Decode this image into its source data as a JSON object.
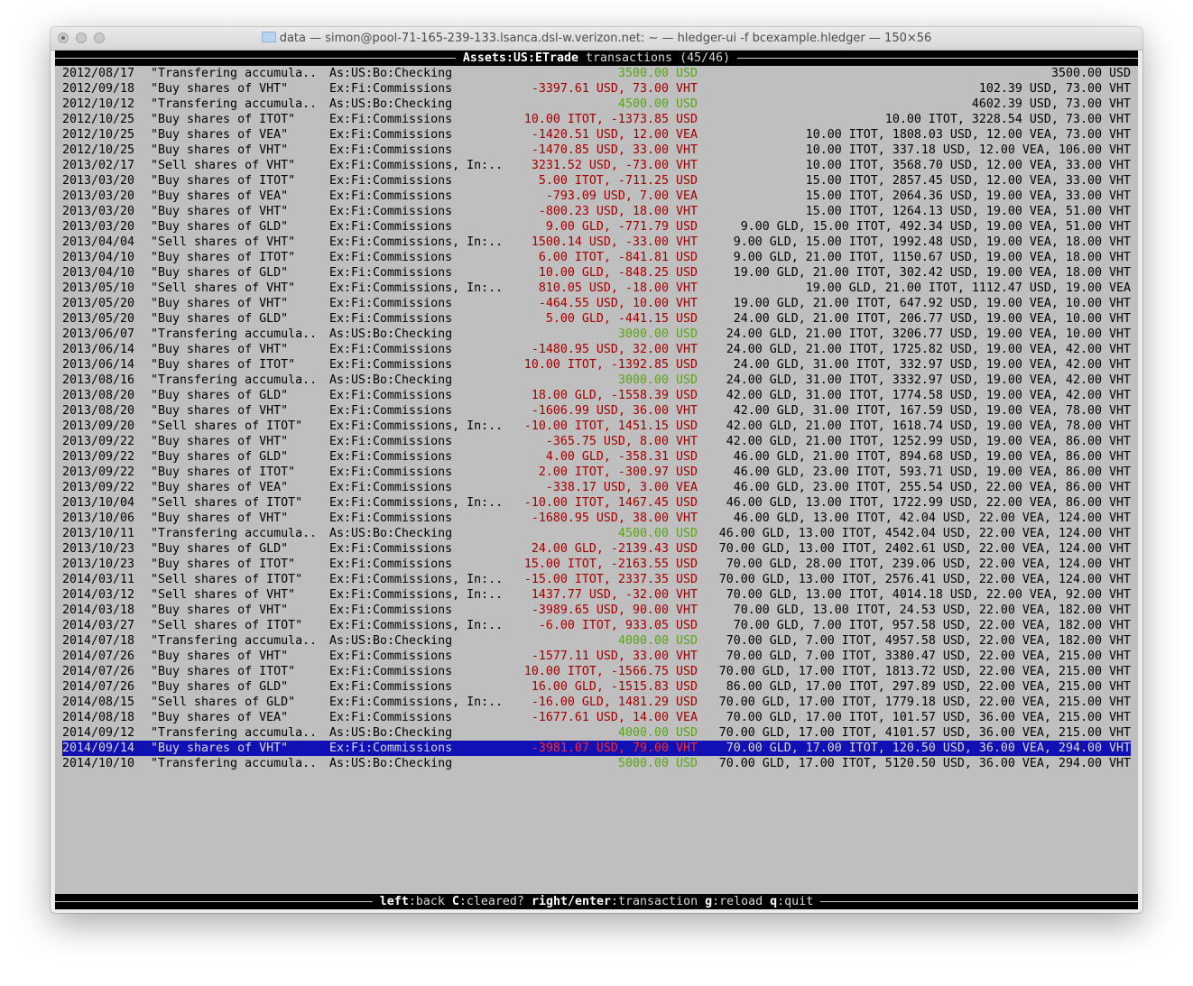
{
  "window": {
    "title": "data — simon@pool-71-165-239-133.lsanca.dsl-w.verizon.net: ~ — hledger-ui -f bcexample.hledger — 150×56"
  },
  "header": {
    "account": "Assets:US:ETrade",
    "suffix": "transactions (45/46)"
  },
  "footer": {
    "keys": [
      {
        "key": "left",
        "action": ":back "
      },
      {
        "key": "C",
        "action": ":cleared? "
      },
      {
        "key": "right/enter",
        "action": ":transaction "
      },
      {
        "key": "g",
        "action": ":reload "
      },
      {
        "key": "q",
        "action": ":quit"
      }
    ]
  },
  "colors": {
    "positive": "#5aa418",
    "negative": "#a00000",
    "selection": "#1010b4",
    "background": "#bfbfbf"
  },
  "selected_index": 44,
  "rows": [
    {
      "date": "2012/08/17",
      "desc": "\"Transfering accumula..",
      "account": "As:US:Bo:Checking",
      "change": "3500.00 USD",
      "sign": "green",
      "balance": "3500.00 USD"
    },
    {
      "date": "2012/09/18",
      "desc": "\"Buy shares of VHT\"",
      "account": "Ex:Fi:Commissions",
      "change": "-3397.61 USD, 73.00 VHT",
      "sign": "red",
      "balance": "102.39 USD, 73.00 VHT"
    },
    {
      "date": "2012/10/12",
      "desc": "\"Transfering accumula..",
      "account": "As:US:Bo:Checking",
      "change": "4500.00 USD",
      "sign": "green",
      "balance": "4602.39 USD, 73.00 VHT"
    },
    {
      "date": "2012/10/25",
      "desc": "\"Buy shares of ITOT\"",
      "account": "Ex:Fi:Commissions",
      "change": "10.00 ITOT, -1373.85 USD",
      "sign": "red",
      "balance": "10.00 ITOT, 3228.54 USD, 73.00 VHT"
    },
    {
      "date": "2012/10/25",
      "desc": "\"Buy shares of VEA\"",
      "account": "Ex:Fi:Commissions",
      "change": "-1420.51 USD, 12.00 VEA",
      "sign": "red",
      "balance": "10.00 ITOT, 1808.03 USD, 12.00 VEA, 73.00 VHT"
    },
    {
      "date": "2012/10/25",
      "desc": "\"Buy shares of VHT\"",
      "account": "Ex:Fi:Commissions",
      "change": "-1470.85 USD, 33.00 VHT",
      "sign": "red",
      "balance": "10.00 ITOT, 337.18 USD, 12.00 VEA, 106.00 VHT"
    },
    {
      "date": "2013/02/17",
      "desc": "\"Sell shares of VHT\"",
      "account": "Ex:Fi:Commissions, In:..",
      "change": "3231.52 USD, -73.00 VHT",
      "sign": "red",
      "balance": "10.00 ITOT, 3568.70 USD, 12.00 VEA, 33.00 VHT"
    },
    {
      "date": "2013/03/20",
      "desc": "\"Buy shares of ITOT\"",
      "account": "Ex:Fi:Commissions",
      "change": "5.00 ITOT, -711.25 USD",
      "sign": "red",
      "balance": "15.00 ITOT, 2857.45 USD, 12.00 VEA, 33.00 VHT"
    },
    {
      "date": "2013/03/20",
      "desc": "\"Buy shares of VEA\"",
      "account": "Ex:Fi:Commissions",
      "change": "-793.09 USD, 7.00 VEA",
      "sign": "red",
      "balance": "15.00 ITOT, 2064.36 USD, 19.00 VEA, 33.00 VHT"
    },
    {
      "date": "2013/03/20",
      "desc": "\"Buy shares of VHT\"",
      "account": "Ex:Fi:Commissions",
      "change": "-800.23 USD, 18.00 VHT",
      "sign": "red",
      "balance": "15.00 ITOT, 1264.13 USD, 19.00 VEA, 51.00 VHT"
    },
    {
      "date": "2013/03/20",
      "desc": "\"Buy shares of GLD\"",
      "account": "Ex:Fi:Commissions",
      "change": "9.00 GLD, -771.79 USD",
      "sign": "red",
      "balance": "9.00 GLD, 15.00 ITOT, 492.34 USD, 19.00 VEA, 51.00 VHT"
    },
    {
      "date": "2013/04/04",
      "desc": "\"Sell shares of VHT\"",
      "account": "Ex:Fi:Commissions, In:..",
      "change": "1500.14 USD, -33.00 VHT",
      "sign": "red",
      "balance": "9.00 GLD, 15.00 ITOT, 1992.48 USD, 19.00 VEA, 18.00 VHT"
    },
    {
      "date": "2013/04/10",
      "desc": "\"Buy shares of ITOT\"",
      "account": "Ex:Fi:Commissions",
      "change": "6.00 ITOT, -841.81 USD",
      "sign": "red",
      "balance": "9.00 GLD, 21.00 ITOT, 1150.67 USD, 19.00 VEA, 18.00 VHT"
    },
    {
      "date": "2013/04/10",
      "desc": "\"Buy shares of GLD\"",
      "account": "Ex:Fi:Commissions",
      "change": "10.00 GLD, -848.25 USD",
      "sign": "red",
      "balance": "19.00 GLD, 21.00 ITOT, 302.42 USD, 19.00 VEA, 18.00 VHT"
    },
    {
      "date": "2013/05/10",
      "desc": "\"Sell shares of VHT\"",
      "account": "Ex:Fi:Commissions, In:..",
      "change": "810.05 USD, -18.00 VHT",
      "sign": "red",
      "balance": "19.00 GLD, 21.00 ITOT, 1112.47 USD, 19.00 VEA"
    },
    {
      "date": "2013/05/20",
      "desc": "\"Buy shares of VHT\"",
      "account": "Ex:Fi:Commissions",
      "change": "-464.55 USD, 10.00 VHT",
      "sign": "red",
      "balance": "19.00 GLD, 21.00 ITOT, 647.92 USD, 19.00 VEA, 10.00 VHT"
    },
    {
      "date": "2013/05/20",
      "desc": "\"Buy shares of GLD\"",
      "account": "Ex:Fi:Commissions",
      "change": "5.00 GLD, -441.15 USD",
      "sign": "red",
      "balance": "24.00 GLD, 21.00 ITOT, 206.77 USD, 19.00 VEA, 10.00 VHT"
    },
    {
      "date": "2013/06/07",
      "desc": "\"Transfering accumula..",
      "account": "As:US:Bo:Checking",
      "change": "3000.00 USD",
      "sign": "green",
      "balance": "24.00 GLD, 21.00 ITOT, 3206.77 USD, 19.00 VEA, 10.00 VHT"
    },
    {
      "date": "2013/06/14",
      "desc": "\"Buy shares of VHT\"",
      "account": "Ex:Fi:Commissions",
      "change": "-1480.95 USD, 32.00 VHT",
      "sign": "red",
      "balance": "24.00 GLD, 21.00 ITOT, 1725.82 USD, 19.00 VEA, 42.00 VHT"
    },
    {
      "date": "2013/06/14",
      "desc": "\"Buy shares of ITOT\"",
      "account": "Ex:Fi:Commissions",
      "change": "10.00 ITOT, -1392.85 USD",
      "sign": "red",
      "balance": "24.00 GLD, 31.00 ITOT, 332.97 USD, 19.00 VEA, 42.00 VHT"
    },
    {
      "date": "2013/08/16",
      "desc": "\"Transfering accumula..",
      "account": "As:US:Bo:Checking",
      "change": "3000.00 USD",
      "sign": "green",
      "balance": "24.00 GLD, 31.00 ITOT, 3332.97 USD, 19.00 VEA, 42.00 VHT"
    },
    {
      "date": "2013/08/20",
      "desc": "\"Buy shares of GLD\"",
      "account": "Ex:Fi:Commissions",
      "change": "18.00 GLD, -1558.39 USD",
      "sign": "red",
      "balance": "42.00 GLD, 31.00 ITOT, 1774.58 USD, 19.00 VEA, 42.00 VHT"
    },
    {
      "date": "2013/08/20",
      "desc": "\"Buy shares of VHT\"",
      "account": "Ex:Fi:Commissions",
      "change": "-1606.99 USD, 36.00 VHT",
      "sign": "red",
      "balance": "42.00 GLD, 31.00 ITOT, 167.59 USD, 19.00 VEA, 78.00 VHT"
    },
    {
      "date": "2013/09/20",
      "desc": "\"Sell shares of ITOT\"",
      "account": "Ex:Fi:Commissions, In:..",
      "change": "-10.00 ITOT, 1451.15 USD",
      "sign": "red",
      "balance": "42.00 GLD, 21.00 ITOT, 1618.74 USD, 19.00 VEA, 78.00 VHT"
    },
    {
      "date": "2013/09/22",
      "desc": "\"Buy shares of VHT\"",
      "account": "Ex:Fi:Commissions",
      "change": "-365.75 USD, 8.00 VHT",
      "sign": "red",
      "balance": "42.00 GLD, 21.00 ITOT, 1252.99 USD, 19.00 VEA, 86.00 VHT"
    },
    {
      "date": "2013/09/22",
      "desc": "\"Buy shares of GLD\"",
      "account": "Ex:Fi:Commissions",
      "change": "4.00 GLD, -358.31 USD",
      "sign": "red",
      "balance": "46.00 GLD, 21.00 ITOT, 894.68 USD, 19.00 VEA, 86.00 VHT"
    },
    {
      "date": "2013/09/22",
      "desc": "\"Buy shares of ITOT\"",
      "account": "Ex:Fi:Commissions",
      "change": "2.00 ITOT, -300.97 USD",
      "sign": "red",
      "balance": "46.00 GLD, 23.00 ITOT, 593.71 USD, 19.00 VEA, 86.00 VHT"
    },
    {
      "date": "2013/09/22",
      "desc": "\"Buy shares of VEA\"",
      "account": "Ex:Fi:Commissions",
      "change": "-338.17 USD, 3.00 VEA",
      "sign": "red",
      "balance": "46.00 GLD, 23.00 ITOT, 255.54 USD, 22.00 VEA, 86.00 VHT"
    },
    {
      "date": "2013/10/04",
      "desc": "\"Sell shares of ITOT\"",
      "account": "Ex:Fi:Commissions, In:..",
      "change": "-10.00 ITOT, 1467.45 USD",
      "sign": "red",
      "balance": "46.00 GLD, 13.00 ITOT, 1722.99 USD, 22.00 VEA, 86.00 VHT"
    },
    {
      "date": "2013/10/06",
      "desc": "\"Buy shares of VHT\"",
      "account": "Ex:Fi:Commissions",
      "change": "-1680.95 USD, 38.00 VHT",
      "sign": "red",
      "balance": "46.00 GLD, 13.00 ITOT, 42.04 USD, 22.00 VEA, 124.00 VHT"
    },
    {
      "date": "2013/10/11",
      "desc": "\"Transfering accumula..",
      "account": "As:US:Bo:Checking",
      "change": "4500.00 USD",
      "sign": "green",
      "balance": "46.00 GLD, 13.00 ITOT, 4542.04 USD, 22.00 VEA, 124.00 VHT"
    },
    {
      "date": "2013/10/23",
      "desc": "\"Buy shares of GLD\"",
      "account": "Ex:Fi:Commissions",
      "change": "24.00 GLD, -2139.43 USD",
      "sign": "red",
      "balance": "70.00 GLD, 13.00 ITOT, 2402.61 USD, 22.00 VEA, 124.00 VHT"
    },
    {
      "date": "2013/10/23",
      "desc": "\"Buy shares of ITOT\"",
      "account": "Ex:Fi:Commissions",
      "change": "15.00 ITOT, -2163.55 USD",
      "sign": "red",
      "balance": "70.00 GLD, 28.00 ITOT, 239.06 USD, 22.00 VEA, 124.00 VHT"
    },
    {
      "date": "2014/03/11",
      "desc": "\"Sell shares of ITOT\"",
      "account": "Ex:Fi:Commissions, In:..",
      "change": "-15.00 ITOT, 2337.35 USD",
      "sign": "red",
      "balance": "70.00 GLD, 13.00 ITOT, 2576.41 USD, 22.00 VEA, 124.00 VHT"
    },
    {
      "date": "2014/03/12",
      "desc": "\"Sell shares of VHT\"",
      "account": "Ex:Fi:Commissions, In:..",
      "change": "1437.77 USD, -32.00 VHT",
      "sign": "red",
      "balance": "70.00 GLD, 13.00 ITOT, 4014.18 USD, 22.00 VEA, 92.00 VHT"
    },
    {
      "date": "2014/03/18",
      "desc": "\"Buy shares of VHT\"",
      "account": "Ex:Fi:Commissions",
      "change": "-3989.65 USD, 90.00 VHT",
      "sign": "red",
      "balance": "70.00 GLD, 13.00 ITOT, 24.53 USD, 22.00 VEA, 182.00 VHT"
    },
    {
      "date": "2014/03/27",
      "desc": "\"Sell shares of ITOT\"",
      "account": "Ex:Fi:Commissions, In:..",
      "change": "-6.00 ITOT, 933.05 USD",
      "sign": "red",
      "balance": "70.00 GLD, 7.00 ITOT, 957.58 USD, 22.00 VEA, 182.00 VHT"
    },
    {
      "date": "2014/07/18",
      "desc": "\"Transfering accumula..",
      "account": "As:US:Bo:Checking",
      "change": "4000.00 USD",
      "sign": "green",
      "balance": "70.00 GLD, 7.00 ITOT, 4957.58 USD, 22.00 VEA, 182.00 VHT"
    },
    {
      "date": "2014/07/26",
      "desc": "\"Buy shares of VHT\"",
      "account": "Ex:Fi:Commissions",
      "change": "-1577.11 USD, 33.00 VHT",
      "sign": "red",
      "balance": "70.00 GLD, 7.00 ITOT, 3380.47 USD, 22.00 VEA, 215.00 VHT"
    },
    {
      "date": "2014/07/26",
      "desc": "\"Buy shares of ITOT\"",
      "account": "Ex:Fi:Commissions",
      "change": "10.00 ITOT, -1566.75 USD",
      "sign": "red",
      "balance": "70.00 GLD, 17.00 ITOT, 1813.72 USD, 22.00 VEA, 215.00 VHT"
    },
    {
      "date": "2014/07/26",
      "desc": "\"Buy shares of GLD\"",
      "account": "Ex:Fi:Commissions",
      "change": "16.00 GLD, -1515.83 USD",
      "sign": "red",
      "balance": "86.00 GLD, 17.00 ITOT, 297.89 USD, 22.00 VEA, 215.00 VHT"
    },
    {
      "date": "2014/08/15",
      "desc": "\"Sell shares of GLD\"",
      "account": "Ex:Fi:Commissions, In:..",
      "change": "-16.00 GLD, 1481.29 USD",
      "sign": "red",
      "balance": "70.00 GLD, 17.00 ITOT, 1779.18 USD, 22.00 VEA, 215.00 VHT"
    },
    {
      "date": "2014/08/18",
      "desc": "\"Buy shares of VEA\"",
      "account": "Ex:Fi:Commissions",
      "change": "-1677.61 USD, 14.00 VEA",
      "sign": "red",
      "balance": "70.00 GLD, 17.00 ITOT, 101.57 USD, 36.00 VEA, 215.00 VHT"
    },
    {
      "date": "2014/09/12",
      "desc": "\"Transfering accumula..",
      "account": "As:US:Bo:Checking",
      "change": "4000.00 USD",
      "sign": "green",
      "balance": "70.00 GLD, 17.00 ITOT, 4101.57 USD, 36.00 VEA, 215.00 VHT"
    },
    {
      "date": "2014/09/14",
      "desc": "\"Buy shares of VHT\"",
      "account": "Ex:Fi:Commissions",
      "change": "-3981.07 USD, 79.00 VHT",
      "sign": "red",
      "balance": "70.00 GLD, 17.00 ITOT, 120.50 USD, 36.00 VEA, 294.00 VHT"
    },
    {
      "date": "2014/10/10",
      "desc": "\"Transfering accumula..",
      "account": "As:US:Bo:Checking",
      "change": "5000.00 USD",
      "sign": "green",
      "balance": "70.00 GLD, 17.00 ITOT, 5120.50 USD, 36.00 VEA, 294.00 VHT"
    }
  ]
}
